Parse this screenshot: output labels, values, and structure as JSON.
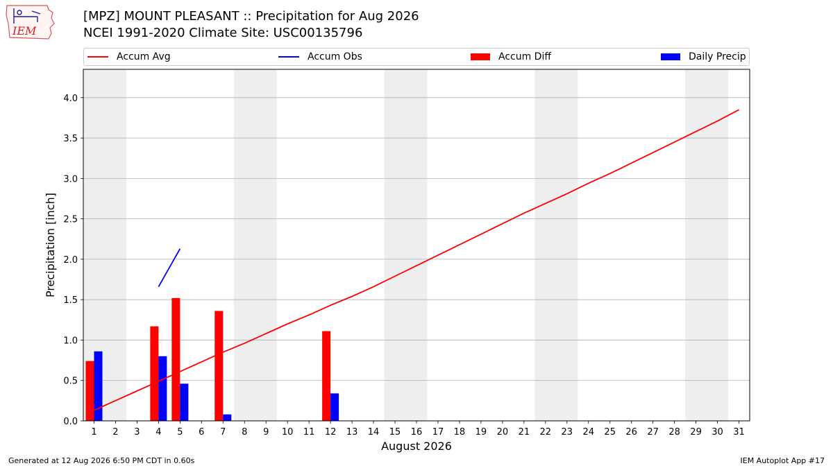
{
  "header": {
    "title_line1": "[MPZ] MOUNT PLEASANT :: Precipitation for Aug 2026",
    "title_line2": "NCEI 1991-2020 Climate Site: USC00135796"
  },
  "logo": {
    "text": "IEM"
  },
  "legend": [
    {
      "label": "Accum Avg",
      "color": "#ff0000",
      "kind": "line"
    },
    {
      "label": "Accum Obs",
      "color": "#0000ff",
      "kind": "line"
    },
    {
      "label": "Accum Diff",
      "color": "#ff0000",
      "kind": "box"
    },
    {
      "label": "Daily Precip",
      "color": "#0000ff",
      "kind": "box"
    }
  ],
  "footer": {
    "left": "Generated at 12 Aug 2026 6:50 PM CDT in 0.60s",
    "right": "IEM Autoplot App #17"
  },
  "chart_data": {
    "type": "bar",
    "xlabel": "August 2026",
    "ylabel": "Precipitation [inch]",
    "x_ticks": [
      1,
      2,
      3,
      4,
      5,
      6,
      7,
      8,
      9,
      10,
      11,
      12,
      13,
      14,
      15,
      16,
      17,
      18,
      19,
      20,
      21,
      22,
      23,
      24,
      25,
      26,
      27,
      28,
      29,
      30,
      31
    ],
    "y_ticks": [
      "0.0",
      "0.5",
      "1.0",
      "1.5",
      "2.0",
      "2.5",
      "3.0",
      "3.5",
      "4.0"
    ],
    "ylim": [
      0,
      4.35
    ],
    "xlim": [
      0.5,
      31.5
    ],
    "grid": "horizontal",
    "legend_position": "top",
    "weekend_shading": [
      [
        0.5,
        2.5
      ],
      [
        7.5,
        9.5
      ],
      [
        14.5,
        16.5
      ],
      [
        21.5,
        23.5
      ],
      [
        28.5,
        30.5
      ]
    ],
    "series": [
      {
        "name": "Accum Avg",
        "type": "line",
        "color": "#ff0000",
        "x": [
          1,
          2,
          3,
          4,
          5,
          6,
          7,
          8,
          9,
          10,
          11,
          12,
          13,
          14,
          15,
          16,
          17,
          18,
          19,
          20,
          21,
          22,
          23,
          24,
          25,
          26,
          27,
          28,
          29,
          30,
          31
        ],
        "values": [
          0.13,
          0.25,
          0.37,
          0.49,
          0.61,
          0.73,
          0.85,
          0.96,
          1.08,
          1.2,
          1.31,
          1.43,
          1.54,
          1.66,
          1.79,
          1.92,
          2.05,
          2.18,
          2.31,
          2.44,
          2.57,
          2.69,
          2.81,
          2.94,
          3.06,
          3.19,
          3.32,
          3.45,
          3.58,
          3.71,
          3.85
        ]
      },
      {
        "name": "Accum Obs",
        "type": "line",
        "color": "#0000ff",
        "x": [
          4,
          5
        ],
        "values": [
          1.66,
          2.13
        ]
      },
      {
        "name": "Accum Diff",
        "type": "bar",
        "color": "#ff0000",
        "x": [
          1,
          4,
          5,
          7,
          12
        ],
        "values": [
          0.74,
          1.17,
          1.52,
          1.36,
          1.11
        ]
      },
      {
        "name": "Daily Precip",
        "type": "bar",
        "color": "#0000ff",
        "x": [
          1,
          4,
          5,
          7,
          12
        ],
        "values": [
          0.86,
          0.8,
          0.46,
          0.08,
          0.34
        ]
      }
    ]
  }
}
